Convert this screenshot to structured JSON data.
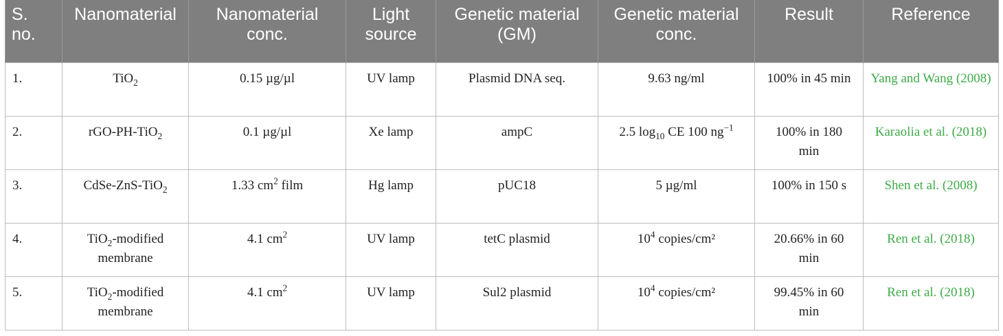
{
  "table": {
    "headers": [
      "S. no.",
      "Nanomaterial",
      "Nanomaterial conc.",
      "Light source",
      "Genetic material (GM)",
      "Genetic material conc.",
      "Result",
      "Reference"
    ],
    "rows": [
      {
        "sno": "1.",
        "nano": {
          "pre": "TiO",
          "sub": "2",
          "post": ""
        },
        "nano_conc": {
          "pre": "0.15 µg/µl",
          "sup": "",
          "post": ""
        },
        "light": "UV lamp",
        "gm": "Plasmid DNA seq.",
        "gm_conc": {
          "pre": "9.63 ng/ml",
          "sub": "",
          "mid": "",
          "sup": "",
          "post": ""
        },
        "result": "100% in 45 min",
        "reference": "Yang and Wang (2008)"
      },
      {
        "sno": "2.",
        "nano": {
          "pre": "rGO-PH-TiO",
          "sub": "2",
          "post": ""
        },
        "nano_conc": {
          "pre": "0.1 µg/µl",
          "sup": "",
          "post": ""
        },
        "light": "Xe lamp",
        "gm": "ampC",
        "gm_conc": {
          "pre": "2.5 log",
          "sub": "10",
          "mid": " CE 100 ng",
          "sup": "−1",
          "post": ""
        },
        "result": "100% in 180 min",
        "reference": "Karaolia et al. (2018)"
      },
      {
        "sno": "3.",
        "nano": {
          "pre": "CdSe-ZnS-TiO",
          "sub": "2",
          "post": ""
        },
        "nano_conc": {
          "pre": "1.33 cm",
          "sup": "2",
          "post": " film"
        },
        "light": "Hg lamp",
        "gm": "pUC18",
        "gm_conc": {
          "pre": "5 µg/ml",
          "sub": "",
          "mid": "",
          "sup": "",
          "post": ""
        },
        "result": "100% in 150 s",
        "reference": "Shen et al. (2008)"
      },
      {
        "sno": "4.",
        "nano": {
          "pre": "TiO",
          "sub": "2",
          "post": "-modified membrane"
        },
        "nano_conc": {
          "pre": "4.1 cm",
          "sup": "2",
          "post": ""
        },
        "light": "UV lamp",
        "gm": "tetC plasmid",
        "gm_conc": {
          "pre": "10",
          "sub": "",
          "mid": "",
          "sup": "4",
          "post": " copies/cm²"
        },
        "result": "20.66% in 60 min",
        "reference": "Ren et al. (2018)"
      },
      {
        "sno": "5.",
        "nano": {
          "pre": "TiO",
          "sub": "2",
          "post": "-modified membrane"
        },
        "nano_conc": {
          "pre": "4.1 cm",
          "sup": "2",
          "post": ""
        },
        "light": "UV lamp",
        "gm": "Sul2 plasmid",
        "gm_conc": {
          "pre": "10",
          "sub": "",
          "mid": "",
          "sup": "4",
          "post": " copies/cm²"
        },
        "result": "99.45% in 60 min",
        "reference": "Ren et al. (2018)"
      }
    ]
  }
}
